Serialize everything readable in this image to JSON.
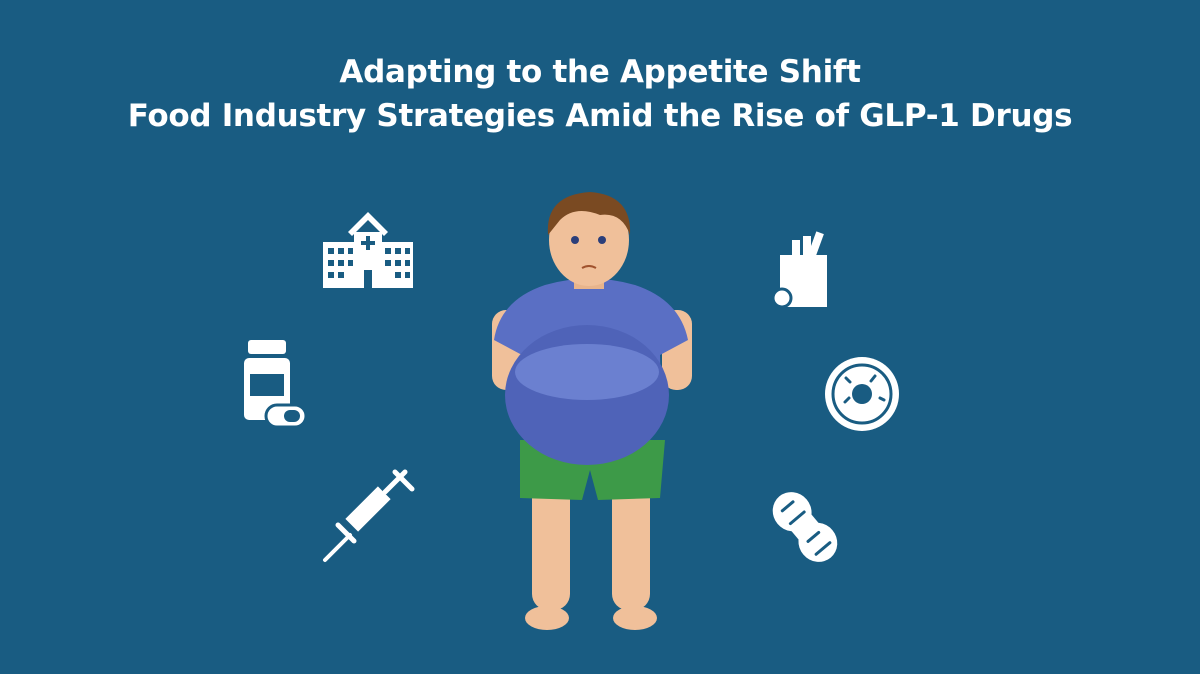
{
  "header": {
    "title_line1": "Adapting to the Appetite Shift",
    "title_line2": "Food Industry Strategies Amid the Rise of GLP-1 Drugs"
  }
}
